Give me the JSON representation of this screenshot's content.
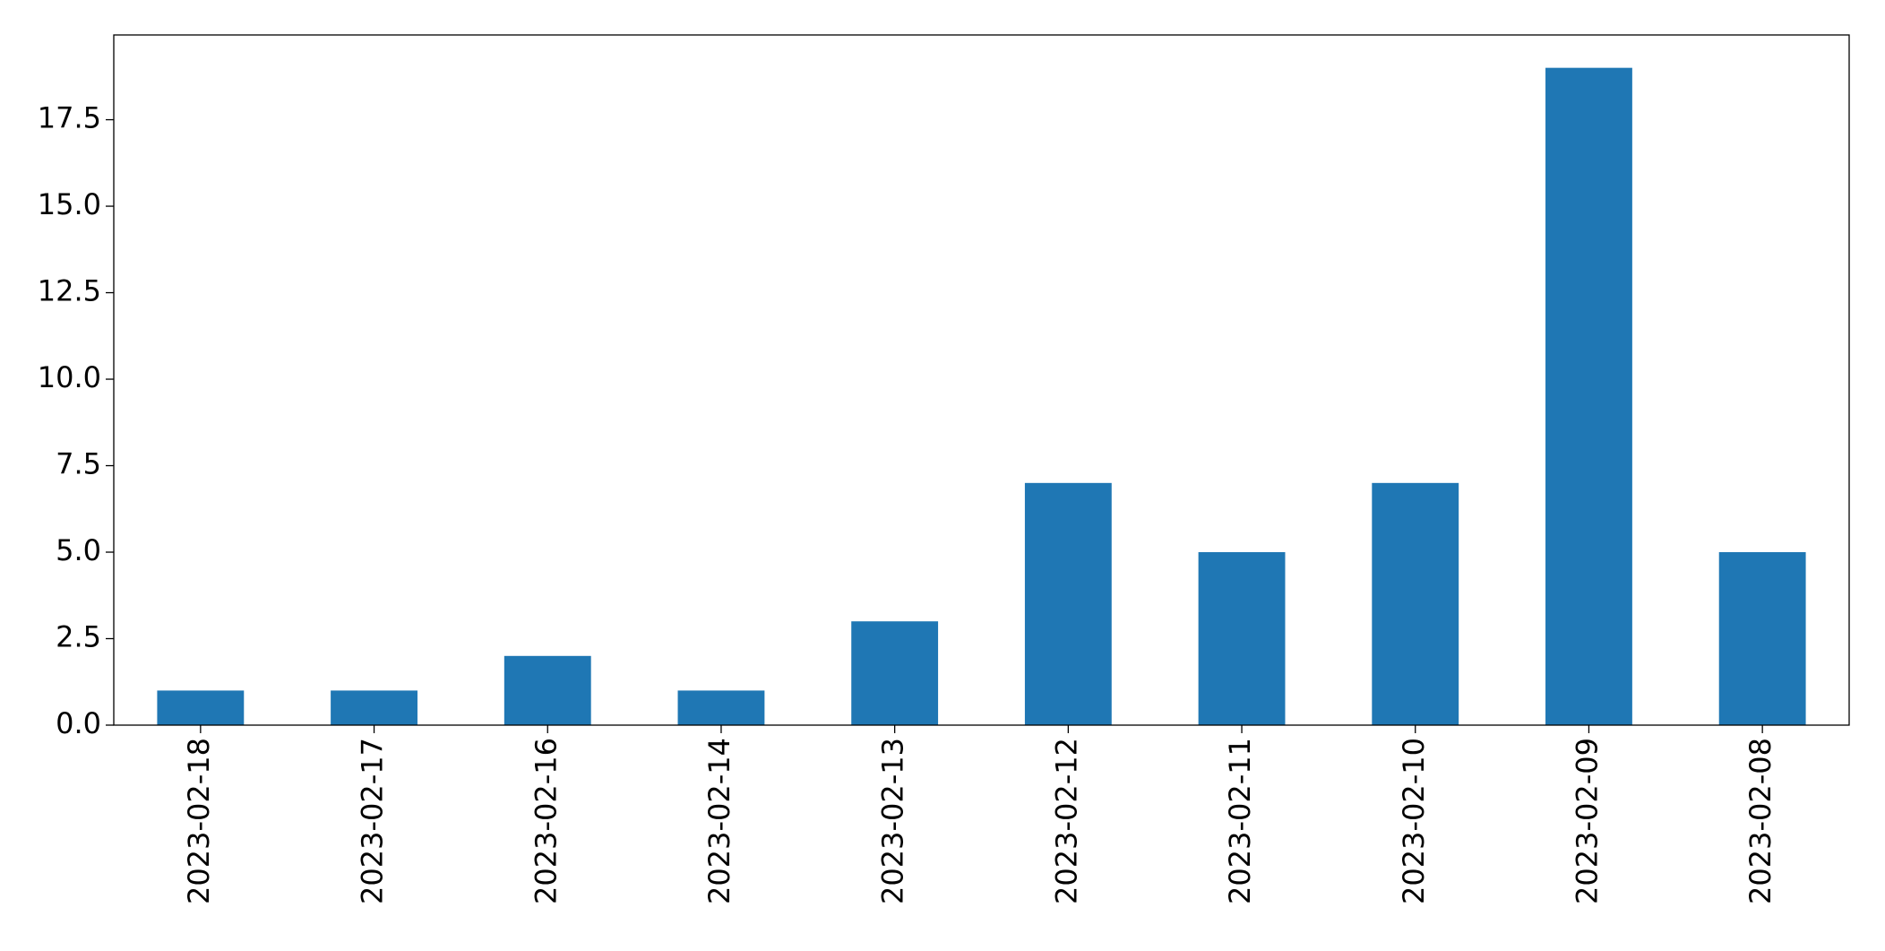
{
  "chart_data": {
    "type": "bar",
    "categories": [
      "2023-02-18",
      "2023-02-17",
      "2023-02-16",
      "2023-02-14",
      "2023-02-13",
      "2023-02-12",
      "2023-02-11",
      "2023-02-10",
      "2023-02-09",
      "2023-02-08"
    ],
    "values": [
      1,
      1,
      2,
      1,
      3,
      7,
      5,
      7,
      19,
      5
    ],
    "color": "#1f77b4",
    "ylim": [
      0,
      19.95
    ],
    "yticks": [
      {
        "value": 0,
        "label": "0.0"
      },
      2.5,
      {
        "value": 5,
        "label": "5.0"
      },
      7.5,
      {
        "value": 10,
        "label": "10.0"
      },
      12.5,
      {
        "value": 15,
        "label": "15.0"
      },
      17.5
    ],
    "grid": false
  }
}
